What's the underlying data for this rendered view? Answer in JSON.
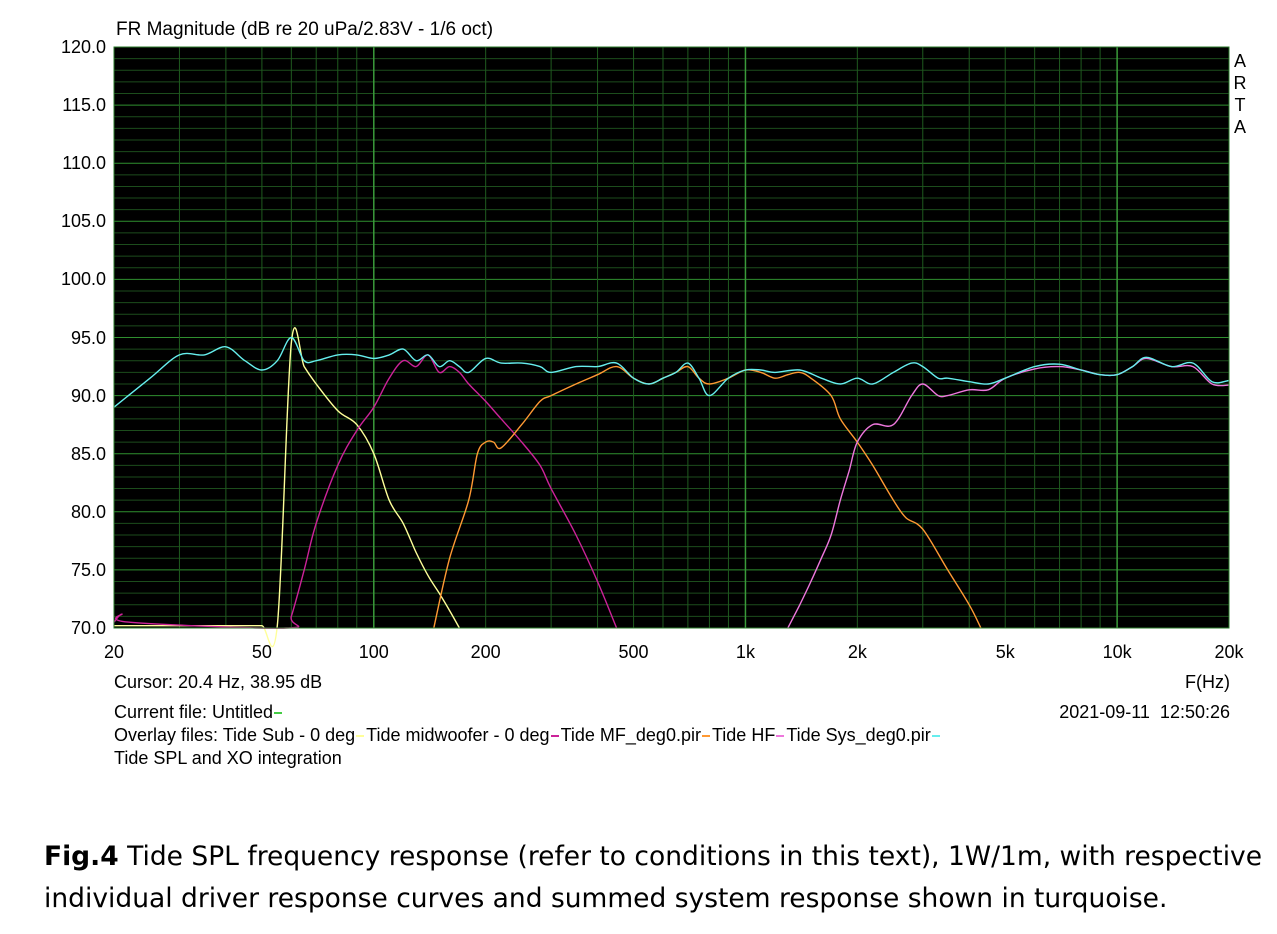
{
  "chart_data": {
    "type": "line",
    "title": "FR Magnitude (dB re 20 uPa/2.83V - 1/6 oct)",
    "xlabel": "F(Hz)",
    "x_scale": "log",
    "xlim": [
      20,
      20000
    ],
    "ylim": [
      70,
      120
    ],
    "x_ticks": [
      {
        "value": 20,
        "label": "20"
      },
      {
        "value": 50,
        "label": "50"
      },
      {
        "value": 100,
        "label": "100"
      },
      {
        "value": 200,
        "label": "200"
      },
      {
        "value": 500,
        "label": "500"
      },
      {
        "value": 1000,
        "label": "1k"
      },
      {
        "value": 2000,
        "label": "2k"
      },
      {
        "value": 5000,
        "label": "5k"
      },
      {
        "value": 10000,
        "label": "10k"
      },
      {
        "value": 20000,
        "label": "20k"
      }
    ],
    "y_ticks": [
      "120.0",
      "115.0",
      "110.0",
      "105.0",
      "100.0",
      "95.0",
      "90.0",
      "85.0",
      "80.0",
      "75.0",
      "70.0"
    ],
    "grid": true,
    "background": "#000000",
    "side_label": [
      "A",
      "R",
      "T",
      "A"
    ],
    "series": [
      {
        "name": "Tide Sub - 0 deg",
        "color": "#ffff99",
        "x": [
          20,
          25,
          30,
          35,
          40,
          45,
          50,
          55,
          60,
          65,
          70,
          80,
          90,
          100,
          110,
          120,
          130,
          140,
          150,
          160,
          170
        ],
        "y": [
          70.2,
          70.2,
          70.2,
          70.2,
          70.2,
          70.2,
          70.2,
          70.2,
          94.5,
          92.5,
          91,
          88.7,
          87.5,
          85,
          81,
          79,
          76.5,
          74.5,
          73,
          71.5,
          70
        ]
      },
      {
        "name": "Tide midwoofer - 0 deg",
        "color": "#cc2299",
        "x": [
          20,
          21,
          22,
          58,
          60,
          65,
          70,
          80,
          90,
          100,
          110,
          120,
          130,
          140,
          150,
          160,
          170,
          180,
          200,
          220,
          250,
          280,
          300,
          350,
          400,
          450
        ],
        "y": [
          70.5,
          71.2,
          70.5,
          70,
          71,
          75,
          79,
          84,
          87,
          89,
          91.5,
          93,
          92.5,
          93.5,
          92,
          92.5,
          92,
          91,
          89.5,
          88,
          86,
          84,
          82,
          78,
          74,
          70
        ]
      },
      {
        "name": "Tide MF_deg0.pir",
        "color": "#ff9933",
        "x": [
          145,
          160,
          180,
          190,
          200,
          210,
          220,
          250,
          280,
          300,
          350,
          400,
          450,
          500,
          550,
          600,
          650,
          700,
          750,
          800,
          900,
          1000,
          1100,
          1200,
          1300,
          1400,
          1500,
          1700,
          1800,
          2000,
          2200,
          2500,
          2700,
          3000,
          3500,
          4000,
          4300
        ],
        "y": [
          70,
          76,
          81,
          85,
          86,
          86,
          85.5,
          87.5,
          89.5,
          90,
          91,
          91.8,
          92.5,
          91.5,
          91,
          91.5,
          92,
          92.5,
          91.5,
          91,
          91.5,
          92.2,
          92,
          91.5,
          91.8,
          92,
          91.5,
          90,
          88,
          86,
          84,
          81,
          79.5,
          78.5,
          75,
          72,
          70
        ]
      },
      {
        "name": "Tide HF",
        "color": "#ee77dd",
        "x": [
          1300,
          1400,
          1500,
          1600,
          1700,
          1800,
          1900,
          2000,
          2200,
          2500,
          2800,
          3000,
          3300,
          3500,
          4000,
          4500,
          5000,
          6000,
          7000,
          8000,
          9000,
          10000,
          11000,
          12000,
          14000,
          16000,
          18000,
          20000
        ],
        "y": [
          70,
          72,
          74,
          76,
          78,
          81,
          83.5,
          86,
          87.5,
          87.5,
          90,
          91,
          90,
          90,
          90.5,
          90.5,
          91.5,
          92.3,
          92.5,
          92.2,
          91.8,
          91.8,
          92.5,
          93.2,
          92.5,
          92.5,
          91,
          90.9
        ]
      },
      {
        "name": "Tide Sys_deg0.pir",
        "color": "#66eeee",
        "x": [
          20,
          25,
          30,
          35,
          40,
          45,
          50,
          55,
          60,
          65,
          70,
          80,
          90,
          100,
          110,
          120,
          130,
          140,
          150,
          160,
          170,
          180,
          200,
          220,
          250,
          280,
          300,
          350,
          400,
          450,
          500,
          550,
          600,
          650,
          700,
          750,
          800,
          900,
          1000,
          1100,
          1200,
          1400,
          1600,
          1800,
          2000,
          2200,
          2500,
          2800,
          3000,
          3300,
          3500,
          4000,
          4500,
          5000,
          6000,
          7000,
          8000,
          9000,
          10000,
          11000,
          12000,
          14000,
          16000,
          18000,
          20000
        ],
        "y": [
          89,
          91.5,
          93.5,
          93.5,
          94.2,
          93,
          92.2,
          93,
          95,
          93,
          93,
          93.5,
          93.5,
          93.2,
          93.5,
          94,
          93,
          93.5,
          92.5,
          93,
          92.5,
          92,
          93.2,
          92.8,
          92.8,
          92.5,
          92,
          92.5,
          92.5,
          92.8,
          91.5,
          91,
          91.5,
          92,
          92.8,
          91.5,
          90,
          91.5,
          92.2,
          92.2,
          92,
          92.2,
          91.5,
          91,
          91.5,
          91,
          92,
          92.8,
          92.5,
          91.5,
          91.5,
          91.2,
          91,
          91.5,
          92.5,
          92.7,
          92.2,
          91.8,
          91.8,
          92.5,
          93.3,
          92.5,
          92.8,
          91.2,
          91.3
        ]
      }
    ]
  },
  "cursor_readout": "Cursor: 20.4 Hz, 38.95 dB",
  "current_file": {
    "label": "Current file: Untitled",
    "color": "#44cc44"
  },
  "timestamp": "2021-09-11  12:50:26",
  "overlay_files_label": "Overlay files:",
  "overlay_files_title": "Tide SPL and XO integration",
  "caption": {
    "figure_label": "Fig.4",
    "text": " Tide SPL frequency response (refer to conditions in this text), 1W/1m, with respective individual driver response curves and summed system response shown in turquoise."
  }
}
